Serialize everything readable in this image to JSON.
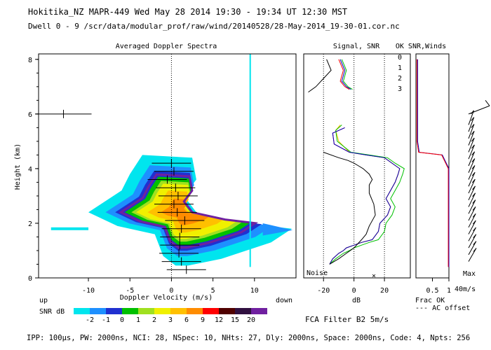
{
  "header": {
    "line1": "Hokitika_NZ  MAPR-449  Wed May 28 2014 19:30 - 19:34 UT 12:30 MST",
    "line2": "Dwell  0 - 9  /scr/data/modular_prof/raw/wind/20140528/28-May-2014_19-30-01.cor.nc"
  },
  "footer": {
    "params": "IPP: 100µs, PW: 2000ns, NCI: 28, NSpec: 10, NHts: 27, Dly: 2000ns, Space: 2000ns, Code: 4, Npts: 256",
    "filter": "FCA Filter B2  5m/s"
  },
  "colorbar": {
    "title": "SNR dB",
    "labels": [
      "-2",
      "-1",
      "0",
      "1",
      "2",
      "3",
      "6",
      "9",
      "12",
      "15",
      "20"
    ],
    "colors": [
      "#00e5ee",
      "#1e90ff",
      "#2030d0",
      "#00c000",
      "#a0e020",
      "#f0f000",
      "#ffc000",
      "#ff8c00",
      "#ff0000",
      "#500000",
      "#301040",
      "#7020a0"
    ]
  },
  "chart_data": [
    {
      "type": "heatmap",
      "title": "Averaged Doppler Spectra",
      "xlabel": "Doppler Velocity (m/s)",
      "ylabel": "Height (km)",
      "xlim": [
        -16,
        15
      ],
      "ylim": [
        0,
        8.2
      ],
      "xticks": [
        "-10",
        "-5",
        "0",
        "5",
        "10"
      ],
      "yticks": [
        "0",
        "2",
        "4",
        "6",
        "8"
      ],
      "corner_left": "up",
      "corner_right": "down",
      "velocity_marks": [
        {
          "h": 4.2,
          "v": 0.0
        },
        {
          "h": 3.9,
          "v": 0.3
        },
        {
          "h": 3.6,
          "v": -0.5
        },
        {
          "h": 3.3,
          "v": 0.5
        },
        {
          "h": 3.0,
          "v": 0.8
        },
        {
          "h": 2.7,
          "v": 0.3
        },
        {
          "h": 2.4,
          "v": 0.7
        },
        {
          "h": 2.1,
          "v": 1.6
        },
        {
          "h": 1.8,
          "v": 1.2
        },
        {
          "h": 1.5,
          "v": 1.0
        },
        {
          "h": 1.2,
          "v": 1.0
        },
        {
          "h": 0.9,
          "v": 0.9
        },
        {
          "h": 0.6,
          "v": 1.2
        },
        {
          "h": 0.3,
          "v": 1.8
        },
        {
          "h": 6.0,
          "v": -13.0
        }
      ]
    },
    {
      "type": "line",
      "title": "Signal, SNR",
      "xlabel": "dB",
      "xlim": [
        -33,
        37
      ],
      "ylim": [
        0,
        8.2
      ],
      "xticks": [
        "-20",
        "0",
        "20"
      ],
      "note": "Noise",
      "series": [
        {
          "name": "0",
          "color": "#ff0000",
          "x": [
            -16,
            -14,
            -10,
            -7,
            -5,
            0,
            5,
            12,
            16,
            17,
            22,
            24,
            21,
            24,
            27,
            29,
            30,
            25,
            20,
            8,
            -3,
            -13,
            -14,
            -6
          ],
          "y": [
            0.5,
            0.7,
            0.9,
            1.0,
            1.1,
            1.2,
            1.3,
            1.4,
            1.7,
            2.0,
            2.3,
            2.6,
            2.9,
            3.2,
            3.5,
            3.8,
            4.0,
            4.2,
            4.4,
            4.5,
            4.6,
            4.9,
            5.3,
            5.5
          ]
        },
        {
          "name": "1",
          "color": "#ffc000",
          "x": [
            -16,
            -14,
            -10,
            -7,
            -5,
            0,
            5,
            12,
            16,
            17,
            22,
            24,
            21,
            24,
            27,
            29,
            30,
            25,
            20,
            8,
            -3,
            -10,
            -12,
            -9
          ],
          "y": [
            0.5,
            0.7,
            0.9,
            1.0,
            1.1,
            1.2,
            1.3,
            1.4,
            1.7,
            2.0,
            2.3,
            2.6,
            2.9,
            3.2,
            3.5,
            3.8,
            4.0,
            4.2,
            4.4,
            4.5,
            4.6,
            5.0,
            5.4,
            5.6
          ]
        },
        {
          "name": "2",
          "color": "#00c000",
          "x": [
            -16,
            -12,
            -7,
            -3,
            0,
            5,
            10,
            16,
            20,
            21,
            25,
            27,
            24,
            27,
            30,
            32,
            33,
            27,
            22,
            10,
            -2,
            -11,
            -12,
            -8
          ],
          "y": [
            0.5,
            0.7,
            0.9,
            1.0,
            1.1,
            1.2,
            1.3,
            1.4,
            1.7,
            2.0,
            2.3,
            2.6,
            2.9,
            3.2,
            3.5,
            3.8,
            4.0,
            4.2,
            4.4,
            4.5,
            4.6,
            5.0,
            5.4,
            5.6
          ]
        },
        {
          "name": "3",
          "color": "#0000c0",
          "x": [
            -16,
            -14,
            -10,
            -7,
            -5,
            0,
            5,
            12,
            16,
            17,
            22,
            24,
            21,
            24,
            27,
            29,
            30,
            25,
            20,
            8,
            -3,
            -13,
            -14,
            -6
          ],
          "y": [
            0.5,
            0.7,
            0.9,
            1.0,
            1.1,
            1.2,
            1.3,
            1.4,
            1.7,
            2.0,
            2.3,
            2.6,
            2.9,
            3.2,
            3.5,
            3.8,
            4.0,
            4.2,
            4.4,
            4.5,
            4.6,
            4.9,
            5.3,
            5.5
          ]
        },
        {
          "name": "signal",
          "color": "#000000",
          "x": [
            -16,
            -10,
            -5,
            0,
            5,
            8,
            10,
            14,
            13,
            10,
            10,
            12,
            10,
            6,
            3,
            0,
            -4,
            -10,
            -20
          ],
          "y": [
            0.5,
            0.7,
            0.9,
            1.1,
            1.4,
            1.6,
            1.9,
            2.3,
            2.7,
            3.1,
            3.4,
            3.6,
            3.8,
            4.0,
            4.1,
            4.2,
            4.3,
            4.4,
            4.6
          ]
        }
      ]
    },
    {
      "type": "line",
      "title": "OK SNR,Winds",
      "xlabel": "Frac OK",
      "xticks": [
        "0.5",
        "1"
      ],
      "legend": [
        "0",
        "1",
        "2",
        "3"
      ],
      "notes": [
        "--- AC offset",
        "Max",
        "40m/s"
      ]
    }
  ]
}
